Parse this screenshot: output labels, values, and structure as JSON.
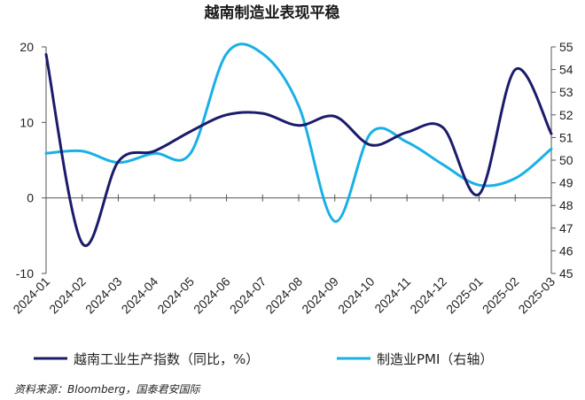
{
  "chart_data": {
    "type": "line",
    "title": "越南制造业表现平稳",
    "categories": [
      "2024-01",
      "2024-02",
      "2024-03",
      "2024-04",
      "2024-05",
      "2024-06",
      "2024-07",
      "2024-08",
      "2024-09",
      "2024-10",
      "2024-11",
      "2024-12",
      "2025-01",
      "2025-02",
      "2025-03"
    ],
    "series": [
      {
        "name": "越南工业生产指数（同比，%）",
        "axis": "left",
        "color": "#1b1b6b",
        "values": [
          19.0,
          -6.0,
          4.8,
          6.2,
          8.8,
          11.0,
          11.2,
          9.6,
          10.8,
          7.0,
          8.7,
          9.3,
          0.5,
          17.0,
          8.5
        ]
      },
      {
        "name": "制造业PMI（右轴）",
        "axis": "right",
        "color": "#1ab0e6",
        "values": [
          50.3,
          50.4,
          49.9,
          50.3,
          50.3,
          54.7,
          54.7,
          52.4,
          47.3,
          51.2,
          50.8,
          49.8,
          48.9,
          49.2,
          50.5
        ]
      }
    ],
    "y_left": {
      "min": -10,
      "max": 20,
      "ticks": [
        -10,
        0,
        10,
        20
      ]
    },
    "y_right": {
      "min": 45,
      "max": 55,
      "ticks": [
        45,
        46,
        47,
        48,
        49,
        50,
        51,
        52,
        53,
        54,
        55
      ]
    },
    "grid": false,
    "legend": "bottom"
  },
  "source": "资料来源：Bloomberg，国泰君安国际"
}
